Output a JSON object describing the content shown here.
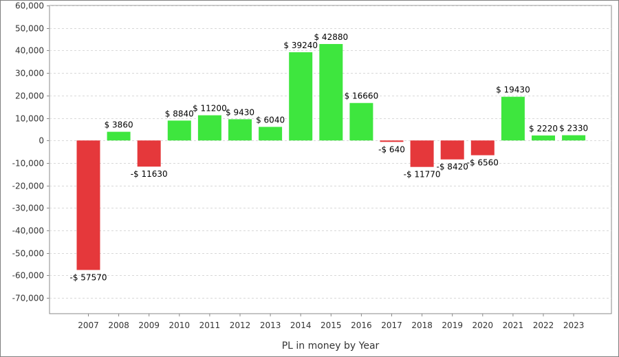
{
  "chart_data": {
    "type": "bar",
    "title": "",
    "xlabel": "PL in money by Year",
    "ylabel": "",
    "categories": [
      "2007",
      "2008",
      "2009",
      "2010",
      "2011",
      "2012",
      "2013",
      "2014",
      "2015",
      "2016",
      "2017",
      "2018",
      "2019",
      "2020",
      "2021",
      "2022",
      "2023"
    ],
    "values": [
      -57570,
      3860,
      -11630,
      8840,
      11200,
      9430,
      6040,
      39240,
      42880,
      16660,
      -640,
      -11770,
      -8420,
      -6560,
      19430,
      2220,
      2330
    ],
    "data_labels": [
      "-$ 57570",
      "$ 3860",
      "-$ 11630",
      "$ 8840",
      "$ 11200",
      "$ 9430",
      "$ 6040",
      "$ 39240",
      "$ 42880",
      "$ 16660",
      "-$ 640",
      "-$ 11770",
      "-$ 8420",
      "-$ 6560",
      "$ 19430",
      "$ 2220",
      "$ 2330"
    ],
    "y_ticks": [
      60000,
      50000,
      40000,
      30000,
      20000,
      10000,
      0,
      -10000,
      -20000,
      -30000,
      -40000,
      -50000,
      -60000,
      -70000
    ],
    "y_tick_labels": [
      "60,000",
      "50,000",
      "40,000",
      "30,000",
      "20,000",
      "10,000",
      "0",
      "-10,000",
      "-20,000",
      "-30,000",
      "-40,000",
      "-50,000",
      "-60,000",
      "-70,000"
    ],
    "ylim": [
      -77000,
      60000
    ],
    "grid": true,
    "colors": {
      "positive": "#3ee63e",
      "negative": "#e5383b",
      "grid": "#d8d8d8",
      "axis": "#888888",
      "frame": "#888888"
    }
  }
}
